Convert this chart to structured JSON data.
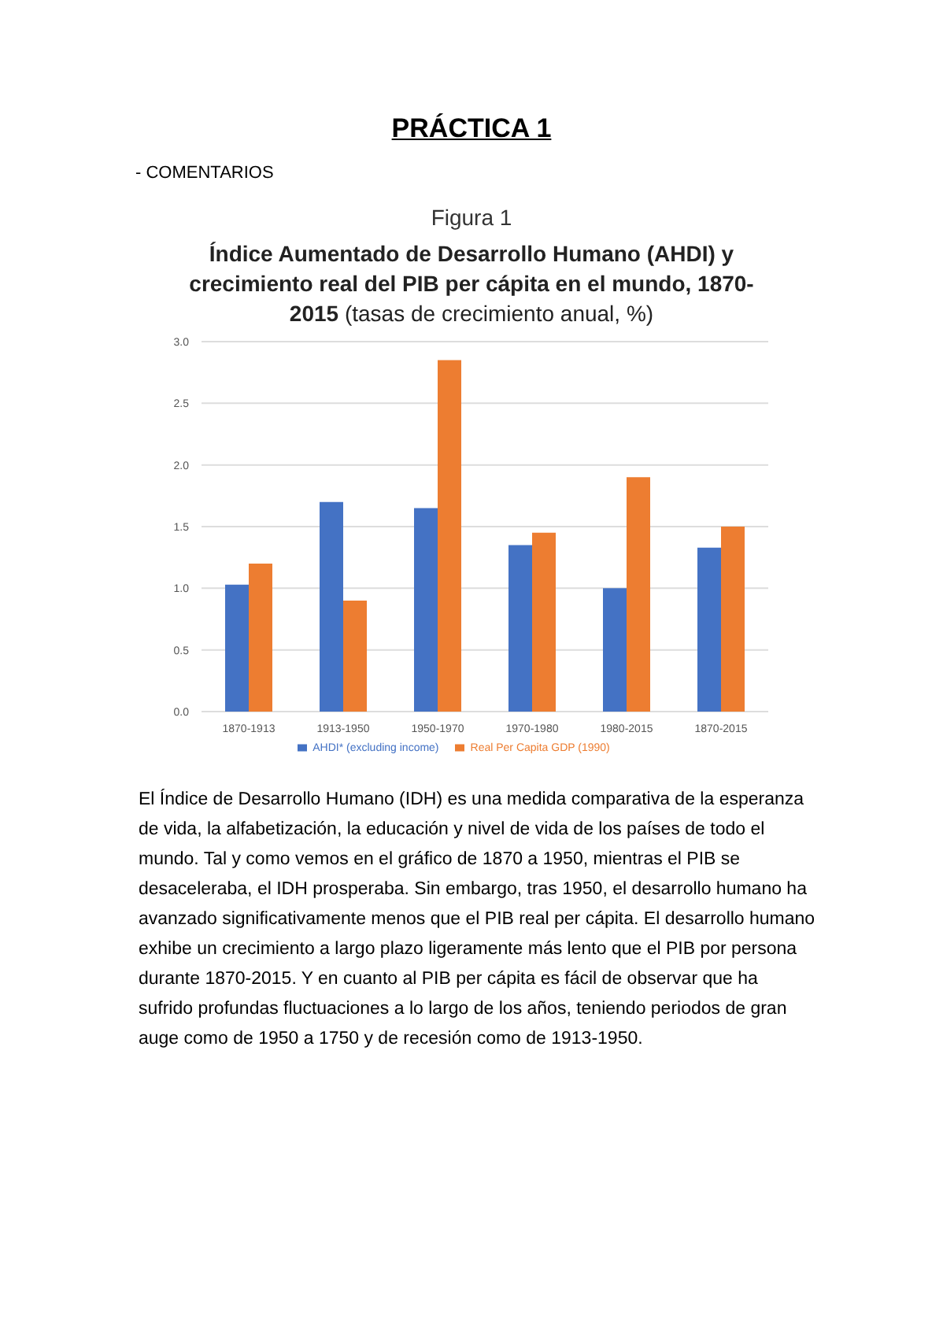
{
  "chart_data": {
    "type": "bar",
    "title": "Índice Aumentado de Desarrollo Humano (AHDI) y crecimiento real del PIB per cápita en el mundo, 1870-2015",
    "subtitle": "(tasas de crecimiento anual, %)",
    "annotations": [
      "PRÁCTICA 1",
      "- COMENTARIOS",
      "Figura 1",
      "El Índice de Desarrollo Humano (IDH) es una medida comparativa de la esperanza de vida, la alfabetización, la educación y nivel de vida de los países de todo el mundo. Tal y como vemos en el gráfico de 1870 a 1950, mientras el PIB se desaceleraba, el IDH prosperaba. Sin embargo, tras 1950, el desarrollo humano ha avanzado significativamente menos que el PIB real per cápita. El desarrollo humano exhibe un crecimiento a largo plazo ligeramente más lento que el PIB por persona durante 1870-2015. Y en cuanto al PIB per cápita es fácil de observar que ha sufrido profundas fluctuaciones a lo largo de los años, teniendo periodos de gran auge como de 1950 a 1750 y de recesión como de 1913-1950."
    ],
    "categories": [
      "1870-1913",
      "1913-1950",
      "1950-1970",
      "1970-1980",
      "1980-2015",
      "1870-2015"
    ],
    "series": [
      {
        "name": "AHDI* (excluding income)",
        "color": "#4472c4",
        "values": [
          1.03,
          1.7,
          1.65,
          1.35,
          1.0,
          1.33
        ]
      },
      {
        "name": "Real Per Capita GDP (1990)",
        "color": "#ed7d31",
        "values": [
          1.2,
          0.9,
          2.85,
          1.45,
          1.9,
          1.5
        ]
      }
    ],
    "ylim": [
      0,
      3
    ],
    "yticks": [
      {
        "value": 0,
        "label": "0.0"
      },
      {
        "value": 0.5,
        "label": "0.5"
      },
      {
        "value": 1,
        "label": "1.0"
      },
      {
        "value": 1.5,
        "label": "1.5"
      },
      {
        "value": 2,
        "label": "2.0"
      },
      {
        "value": 2.5,
        "label": "2.5"
      },
      {
        "value": 3,
        "label": "3.0"
      }
    ],
    "grid": "y",
    "legend": "bottom"
  }
}
